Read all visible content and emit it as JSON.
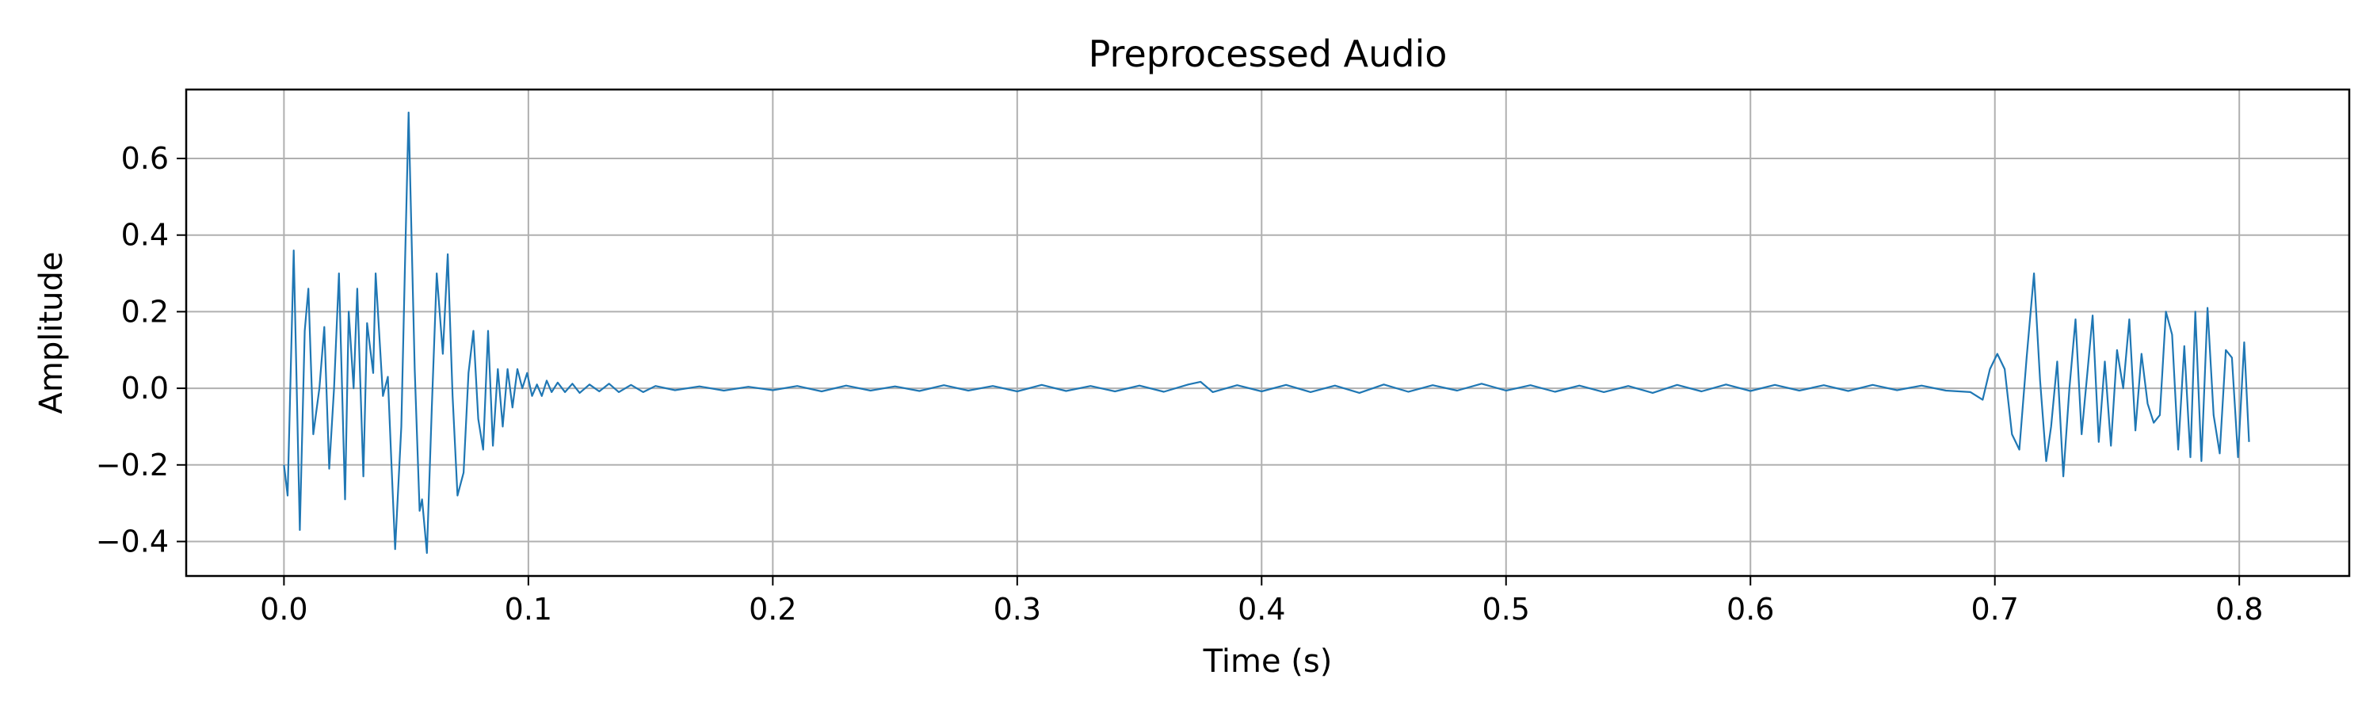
{
  "chart_data": {
    "type": "line",
    "title": "Preprocessed Audio",
    "xlabel": "Time (s)",
    "ylabel": "Amplitude",
    "xlim": [
      -0.04,
      0.845
    ],
    "ylim": [
      -0.49,
      0.78
    ],
    "xticks": [
      0.0,
      0.1,
      0.2,
      0.3,
      0.4,
      0.5,
      0.6,
      0.7,
      0.8
    ],
    "xtick_labels": [
      "0.0",
      "0.1",
      "0.2",
      "0.3",
      "0.4",
      "0.5",
      "0.6",
      "0.7",
      "0.8"
    ],
    "yticks": [
      -0.4,
      -0.2,
      0.0,
      0.2,
      0.4,
      0.6
    ],
    "ytick_labels": [
      "−0.4",
      "−0.2",
      "0.0",
      "0.2",
      "0.4",
      "0.6"
    ],
    "grid": true,
    "series": [
      {
        "color": "#1f77b4",
        "x": [
          0.0,
          0.0015,
          0.004,
          0.0065,
          0.0085,
          0.01,
          0.012,
          0.0145,
          0.0165,
          0.0185,
          0.0205,
          0.0225,
          0.025,
          0.0265,
          0.0285,
          0.03,
          0.0325,
          0.034,
          0.0365,
          0.0375,
          0.0405,
          0.0425,
          0.044,
          0.0455,
          0.048,
          0.0495,
          0.051,
          0.0535,
          0.0555,
          0.0565,
          0.0585,
          0.0605,
          0.0625,
          0.065,
          0.067,
          0.069,
          0.071,
          0.0735,
          0.0755,
          0.0775,
          0.0795,
          0.0815,
          0.0835,
          0.0855,
          0.0875,
          0.0895,
          0.0915,
          0.0935,
          0.0955,
          0.0975,
          0.0995,
          0.1015,
          0.1035,
          0.1055,
          0.1075,
          0.1095,
          0.112,
          0.115,
          0.118,
          0.121,
          0.125,
          0.129,
          0.133,
          0.137,
          0.142,
          0.147,
          0.152,
          0.16,
          0.17,
          0.18,
          0.19,
          0.2,
          0.21,
          0.22,
          0.23,
          0.24,
          0.25,
          0.26,
          0.27,
          0.28,
          0.29,
          0.3,
          0.31,
          0.32,
          0.33,
          0.34,
          0.35,
          0.36,
          0.37,
          0.375,
          0.38,
          0.39,
          0.4,
          0.41,
          0.42,
          0.43,
          0.44,
          0.45,
          0.46,
          0.47,
          0.48,
          0.49,
          0.5,
          0.51,
          0.52,
          0.53,
          0.54,
          0.55,
          0.56,
          0.57,
          0.58,
          0.59,
          0.6,
          0.61,
          0.62,
          0.63,
          0.64,
          0.65,
          0.66,
          0.67,
          0.68,
          0.69,
          0.695,
          0.698,
          0.701,
          0.704,
          0.707,
          0.71,
          0.713,
          0.716,
          0.7185,
          0.721,
          0.723,
          0.7255,
          0.728,
          0.7305,
          0.733,
          0.7355,
          0.738,
          0.74,
          0.7425,
          0.745,
          0.7475,
          0.75,
          0.7525,
          0.755,
          0.7575,
          0.76,
          0.7625,
          0.765,
          0.7675,
          0.77,
          0.7725,
          0.775,
          0.7775,
          0.78,
          0.782,
          0.7845,
          0.787,
          0.7895,
          0.792,
          0.7945,
          0.797,
          0.7995,
          0.802,
          0.804
        ],
        "y": [
          -0.2,
          -0.28,
          0.36,
          -0.37,
          0.15,
          0.26,
          -0.12,
          0.0,
          0.16,
          -0.21,
          0.0,
          0.3,
          -0.29,
          0.2,
          0.0,
          0.26,
          -0.23,
          0.17,
          0.04,
          0.3,
          -0.02,
          0.03,
          -0.2,
          -0.42,
          -0.1,
          0.32,
          0.72,
          0.05,
          -0.32,
          -0.29,
          -0.43,
          -0.05,
          0.3,
          0.09,
          0.35,
          -0.02,
          -0.28,
          -0.22,
          0.04,
          0.15,
          -0.08,
          -0.16,
          0.15,
          -0.15,
          0.05,
          -0.1,
          0.05,
          -0.05,
          0.05,
          0.0,
          0.04,
          -0.02,
          0.01,
          -0.02,
          0.02,
          -0.01,
          0.015,
          -0.01,
          0.012,
          -0.012,
          0.01,
          -0.008,
          0.012,
          -0.01,
          0.009,
          -0.01,
          0.006,
          -0.005,
          0.005,
          -0.006,
          0.004,
          -0.005,
          0.006,
          -0.008,
          0.007,
          -0.006,
          0.005,
          -0.007,
          0.008,
          -0.006,
          0.006,
          -0.008,
          0.009,
          -0.007,
          0.006,
          -0.008,
          0.007,
          -0.009,
          0.01,
          0.017,
          -0.01,
          0.008,
          -0.008,
          0.009,
          -0.01,
          0.007,
          -0.012,
          0.01,
          -0.009,
          0.008,
          -0.006,
          0.012,
          -0.006,
          0.008,
          -0.009,
          0.007,
          -0.01,
          0.006,
          -0.012,
          0.009,
          -0.008,
          0.01,
          -0.007,
          0.009,
          -0.006,
          0.008,
          -0.007,
          0.009,
          -0.005,
          0.007,
          -0.006,
          -0.01,
          -0.03,
          0.05,
          0.09,
          0.05,
          -0.12,
          -0.16,
          0.08,
          0.3,
          0.02,
          -0.19,
          -0.1,
          0.07,
          -0.23,
          0.0,
          0.18,
          -0.12,
          0.05,
          0.19,
          -0.14,
          0.07,
          -0.15,
          0.1,
          0.0,
          0.18,
          -0.11,
          0.09,
          -0.04,
          -0.09,
          -0.07,
          0.2,
          0.14,
          -0.16,
          0.11,
          -0.18,
          0.2,
          -0.19,
          0.21,
          -0.07,
          -0.17,
          0.1,
          0.08,
          -0.18,
          0.12,
          -0.14
        ]
      }
    ]
  }
}
